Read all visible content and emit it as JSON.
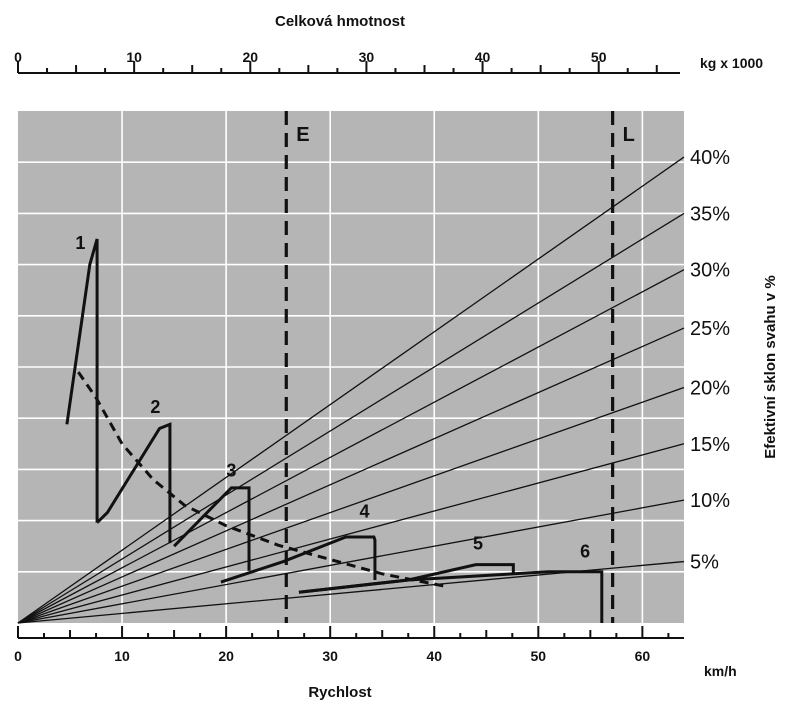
{
  "chart_data": {
    "type": "line",
    "title": "Celková hmotnost",
    "top_axis": {
      "label": "Celková hmotnost",
      "unit": "kg x 1000",
      "ticks": [
        0,
        10,
        20,
        30,
        40,
        50
      ],
      "range": [
        0,
        57
      ]
    },
    "xlabel": "Rychlost",
    "x_unit": "km/h",
    "xticks": [
      0,
      10,
      20,
      30,
      40,
      50,
      60
    ],
    "xlim": [
      0,
      64
    ],
    "ylabel": "Efektivní sklon svahu v %",
    "ylim": [
      0,
      50
    ],
    "grid": true,
    "grade_lines": [
      {
        "label": "5%",
        "end_y": 6
      },
      {
        "label": "10%",
        "end_y": 12
      },
      {
        "label": "15%",
        "end_y": 17.5
      },
      {
        "label": "20%",
        "end_y": 23
      },
      {
        "label": "25%",
        "end_y": 28.8
      },
      {
        "label": "30%",
        "end_y": 34.5
      },
      {
        "label": "35%",
        "end_y": 40
      },
      {
        "label": "40%",
        "end_y": 45.5
      }
    ],
    "weight_limits": [
      {
        "label": "E",
        "weight": 23.1
      },
      {
        "label": "L",
        "weight": 51.2
      }
    ],
    "gears": [
      {
        "name": "1",
        "points": [
          [
            4.7,
            19.4
          ],
          [
            6.9,
            35
          ],
          [
            7.6,
            37.5
          ],
          [
            7.6,
            9.8
          ],
          [
            8.6,
            10.8
          ],
          [
            13.6,
            19
          ],
          [
            14.6,
            19.4
          ],
          [
            14.6,
            7.8
          ],
          [
            15.5,
            9.1
          ],
          [
            20.5,
            13.2
          ],
          [
            22.2,
            13.2
          ],
          [
            22.2,
            5.1
          ],
          [
            25.5,
            6
          ],
          [
            31.5,
            8.4
          ],
          [
            34.2,
            8.4
          ],
          [
            34.3,
            8.1
          ],
          [
            34.3,
            4.2
          ],
          [
            37.5,
            4.2
          ],
          [
            44,
            5.7
          ],
          [
            47.6,
            5.7
          ],
          [
            47.6,
            4.8
          ],
          [
            51,
            5
          ],
          [
            56.1,
            5
          ],
          [
            56.1,
            0
          ]
        ]
      },
      {
        "name": "2",
        "points": [
          [
            7.6,
            9.8
          ],
          [
            8.6,
            10.8
          ],
          [
            13.6,
            19
          ],
          [
            14.6,
            19.4
          ],
          [
            14.6,
            7.8
          ]
        ]
      },
      {
        "name": "3",
        "points": [
          [
            15,
            7.5
          ],
          [
            20.5,
            13.2
          ],
          [
            22.2,
            13.2
          ],
          [
            22.2,
            5.1
          ]
        ]
      },
      {
        "name": "4",
        "points": [
          [
            19.5,
            4
          ],
          [
            25.5,
            6
          ],
          [
            31.5,
            8.4
          ],
          [
            34.2,
            8.4
          ],
          [
            34.3,
            8.1
          ],
          [
            34.3,
            4.2
          ]
        ]
      },
      {
        "name": "5",
        "points": [
          [
            27,
            3
          ],
          [
            37.5,
            4.2
          ],
          [
            44,
            5.7
          ],
          [
            47.6,
            5.7
          ],
          [
            47.6,
            4.8
          ]
        ]
      },
      {
        "name": "6",
        "points": [
          [
            27,
            3
          ],
          [
            37.5,
            4.2
          ],
          [
            51,
            5
          ],
          [
            56.1,
            5
          ],
          [
            56.1,
            0
          ]
        ]
      }
    ],
    "gear_label_positions": [
      [
        6,
        36.5
      ],
      [
        13.2,
        20.5
      ],
      [
        20.5,
        14.3
      ],
      [
        33.3,
        10.3
      ],
      [
        44.2,
        7.2
      ],
      [
        54.5,
        6.4
      ]
    ],
    "dashed_curve": [
      [
        5.8,
        24.5
      ],
      [
        7.5,
        22
      ],
      [
        10,
        17.5
      ],
      [
        13,
        14
      ],
      [
        16,
        11.5
      ],
      [
        20,
        9.5
      ],
      [
        25,
        7.6
      ],
      [
        30,
        6.2
      ],
      [
        35,
        4.8
      ],
      [
        40,
        3.8
      ],
      [
        41,
        3.6
      ]
    ]
  },
  "labels": {
    "top_title": "Celková hmotnost",
    "top_unit": "kg x 1000",
    "bottom_title": "Rychlost",
    "bottom_unit": "km/h",
    "right_title": "Efektivní sklon svahu v %",
    "line_e": "E",
    "line_l": "L"
  }
}
